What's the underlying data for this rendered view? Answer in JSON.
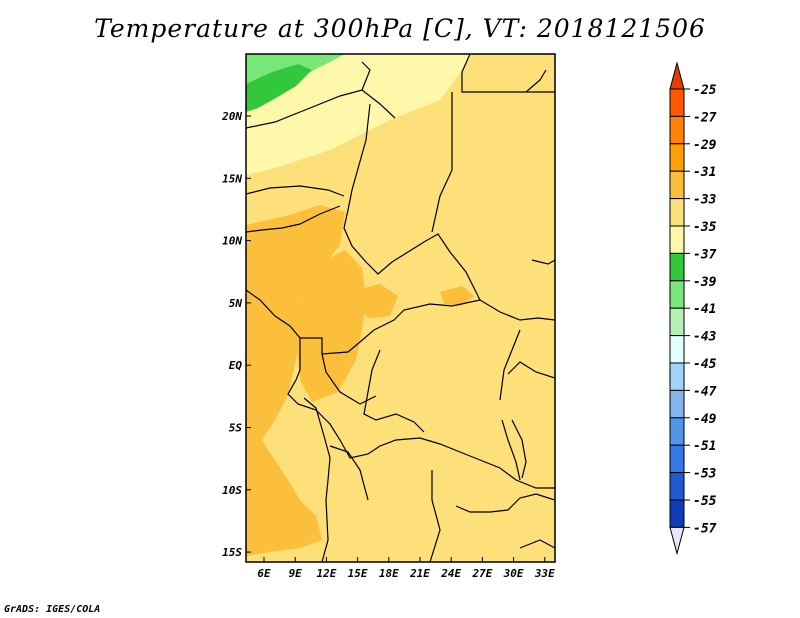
{
  "title": "Temperature at 300hPa [C], VT: 2018121506",
  "credit": "GrADS: IGES/COLA",
  "lon_labels": [
    "6E",
    "9E",
    "12E",
    "15E",
    "18E",
    "21E",
    "24E",
    "27E",
    "30E",
    "33E"
  ],
  "lat_labels": [
    "20N",
    "15N",
    "10N",
    "5N",
    "EQ",
    "5S",
    "10S",
    "15S"
  ],
  "colorbar": {
    "labels": [
      "-25",
      "-27",
      "-29",
      "-31",
      "-33",
      "-35",
      "-37",
      "-39",
      "-41",
      "-43",
      "-45",
      "-47",
      "-49",
      "-51",
      "-53",
      "-55",
      "-57"
    ],
    "colors": [
      "#ff5a00",
      "#ff8200",
      "#ffa000",
      "#fbbf3c",
      "#fde07a",
      "#fff8aa",
      "#32c83c",
      "#78e678",
      "#b4f0b4",
      "#e1ffff",
      "#a0d2fa",
      "#82b4f0",
      "#5096e6",
      "#3278e6",
      "#1e5ad2",
      "#0f3cb4",
      "#0a147d"
    ],
    "top_arrow_color": "#e63c00",
    "bottom_arrow_color": "#e6e6ff"
  },
  "map_colors": {
    "base": "#fde07a",
    "warm": "#fbbf3c",
    "light": "#fff8aa",
    "green": "#78e678",
    "dark_green": "#32c83c"
  }
}
